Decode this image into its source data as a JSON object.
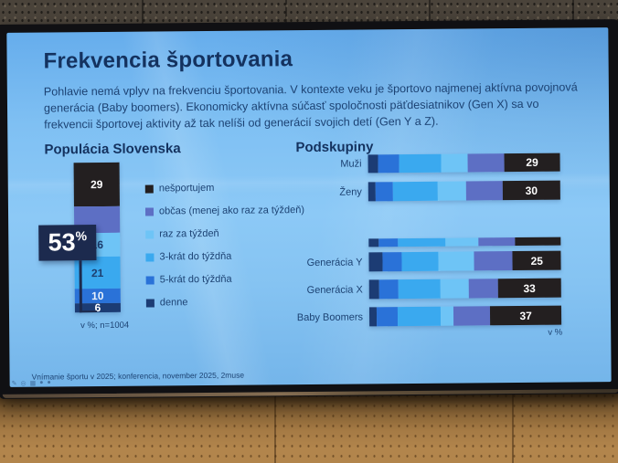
{
  "slide": {
    "title": "Frekvencia športovania",
    "intro": "Pohlavie nemá vplyv na frekvenciu športovania. V kontexte veku je športovo najmenej aktívna povojnová generácia (Baby boomers). Ekonomicky aktívna súčasť spoločnosti päťdesiatnikov (Gen X) sa vo frekvencii športovej aktivity až tak nelíši od generácií svojich detí (Gen Y a Z).",
    "left_section_title": "Populácia Slovenska",
    "right_section_title": "Podskupiny",
    "callout": {
      "value": "53",
      "unit": "%"
    },
    "left_note": "v %; n=1004",
    "right_note": "v %",
    "footer": "Vnímanie športu v 2025; konferencia, november 2025, 2muse"
  },
  "screen": {
    "toolbar_icons": [
      {
        "name": "pen-icon",
        "glyph": "✎"
      },
      {
        "name": "magnifier-icon",
        "glyph": "◎"
      },
      {
        "name": "slides-panel-icon",
        "glyph": "▦"
      },
      {
        "name": "dot-icon",
        "glyph": "●"
      },
      {
        "name": "dot-icon",
        "glyph": "●"
      }
    ]
  },
  "palette": {
    "nešportujem": "#231f20",
    "občas (menej ako raz za týždeň)": "#5d6fc4",
    "raz za týždeň": "#6ec4f6",
    "3-krát do týždňa": "#3aa9ef",
    "5-krát do týždňa": "#2a72d8",
    "denne": "#1c3c74",
    "heading_text": "#14325f",
    "callout_bg": "#1c2a4e"
  },
  "chart_data": [
    {
      "type": "bar",
      "subtype": "stacked-column",
      "title": "Populácia Slovenska",
      "unit": "v %",
      "sample_note": "v %; n=1004",
      "segments": [
        {
          "name": "nešportujem",
          "value": 29,
          "label": "29",
          "label_color": "#ffffff"
        },
        {
          "name": "občas (menej ako raz za týždeň)",
          "value": 18,
          "label": "",
          "label_color": "",
          "estimated": true
        },
        {
          "name": "raz za týždeň",
          "value": 16,
          "label": "16",
          "label_color": "#1d3f70"
        },
        {
          "name": "3-krát do týždňa",
          "value": 21,
          "label": "21",
          "label_color": "#1d3f70"
        },
        {
          "name": "5-krát do týždňa",
          "value": 10,
          "label": "10",
          "label_color": "#e8f1fb"
        },
        {
          "name": "denne",
          "value": 6,
          "label": "6",
          "label_color": "#ffffff"
        }
      ],
      "callout": {
        "text": "53%",
        "value": 53,
        "covers": [
          "raz za týždeň",
          "3-krát do týždňa",
          "5-krát do týždňa",
          "denne"
        ]
      }
    },
    {
      "type": "bar",
      "subtype": "stacked-horizontal",
      "title": "Podskupiny",
      "unit": "v %",
      "segment_order": [
        "denne",
        "5-krát do týždňa",
        "3-krát do týždňa",
        "raz za týždeň",
        "občas (menej ako raz za týždeň)",
        "nešportujem"
      ],
      "values_estimated_except_last": true,
      "rows": [
        {
          "label": "Muži",
          "values": [
            5,
            11,
            22,
            14,
            19,
            29
          ],
          "value_label": "29",
          "thin": false
        },
        {
          "label": "Ženy",
          "values": [
            4,
            9,
            23,
            15,
            19,
            30
          ],
          "value_label": "30",
          "thin": false
        },
        {
          "label": "",
          "values": [
            5,
            10,
            25,
            17,
            19,
            24
          ],
          "value_label": "",
          "thin": true
        },
        {
          "label": "Generácia Y",
          "values": [
            7,
            10,
            19,
            19,
            20,
            25
          ],
          "value_label": "25",
          "thin": false
        },
        {
          "label": "Generácia X",
          "values": [
            5,
            10,
            22,
            15,
            15,
            33
          ],
          "value_label": "33",
          "thin": false
        },
        {
          "label": "Baby Boomers",
          "values": [
            4,
            11,
            22,
            7,
            19,
            37
          ],
          "value_label": "37",
          "thin": false
        }
      ]
    }
  ]
}
